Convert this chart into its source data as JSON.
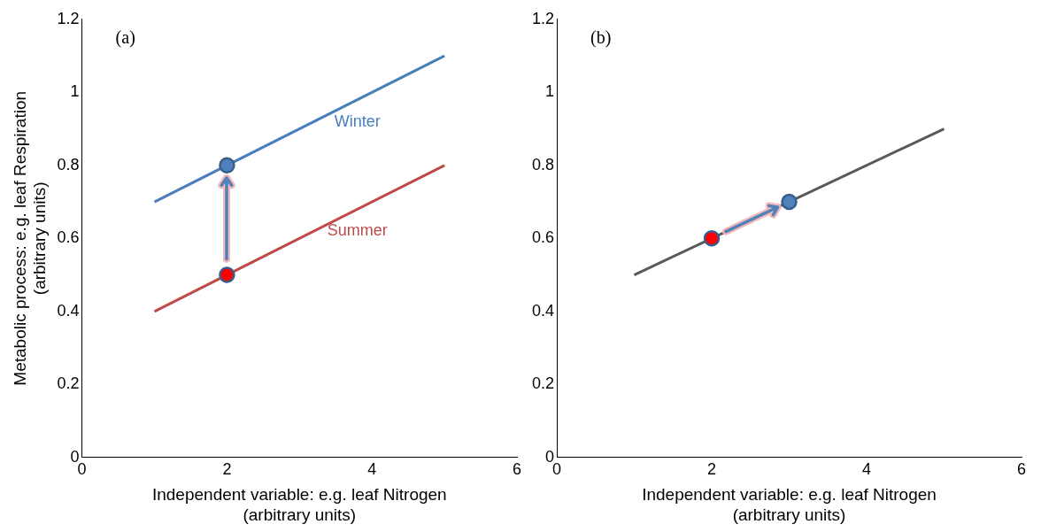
{
  "chart_data": [
    {
      "type": "line",
      "annotations": [
        "(a)"
      ],
      "ylabel": "Metabolic process: e.g. leaf Respiration\n(arbitrary units)",
      "xlabel": "Independent variable: e.g. leaf Nitrogen\n(arbitrary units)",
      "xlim": [
        0,
        6
      ],
      "xticks": [
        0,
        2,
        4,
        6
      ],
      "ylim": [
        0,
        1.2
      ],
      "yticks": [
        0,
        0.2,
        0.4,
        0.6,
        0.8,
        1,
        1.2
      ],
      "grid": false,
      "legend": false,
      "series": [
        {
          "name": "Winter",
          "color": "#4a7ebb",
          "x": [
            1,
            5
          ],
          "values": [
            0.7,
            1.1
          ],
          "marker": "none"
        },
        {
          "name": "Summer",
          "color": "#be4b48",
          "x": [
            1,
            5
          ],
          "values": [
            0.4,
            0.8
          ],
          "marker": "none"
        },
        {
          "type": "scatter",
          "color": "#ff0000",
          "x": [
            2
          ],
          "values": [
            0.5
          ],
          "marker": "circle"
        },
        {
          "type": "scatter",
          "color": "#4f81bd",
          "x": [
            2
          ],
          "values": [
            0.8
          ],
          "marker": "circle"
        }
      ]
    },
    {
      "type": "line",
      "annotations": [
        "(b)"
      ],
      "xlabel": "Independent variable: e.g. leaf Nitrogen\n(arbitrary units)",
      "xlim": [
        0,
        6
      ],
      "xticks": [
        0,
        2,
        4,
        6
      ],
      "ylim": [
        0,
        1.2
      ],
      "yticks": [
        0,
        0.2,
        0.4,
        0.6,
        0.8,
        1,
        1.2
      ],
      "grid": false,
      "legend": false,
      "series": [
        {
          "color": "#595959",
          "x": [
            1,
            5
          ],
          "values": [
            0.5,
            0.9
          ],
          "marker": "none"
        },
        {
          "type": "scatter",
          "color": "#ff0000",
          "x": [
            2
          ],
          "values": [
            0.6
          ],
          "marker": "circle"
        },
        {
          "type": "scatter",
          "color": "#4f81bd",
          "x": [
            3
          ],
          "values": [
            0.7
          ],
          "marker": "circle"
        }
      ]
    }
  ]
}
